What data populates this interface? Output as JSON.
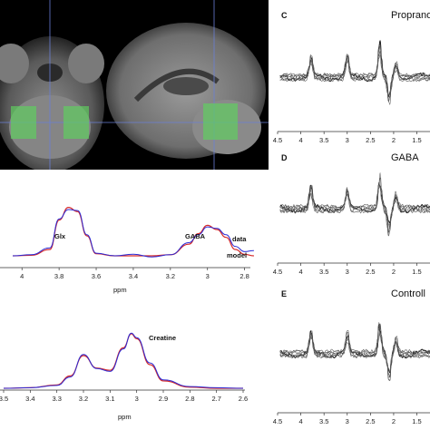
{
  "colors": {
    "data": "#2b2bd6",
    "model": "#d62b2b",
    "mask": "#5ed25e",
    "trace": "#222222"
  },
  "chart_data": [
    {
      "type": "line",
      "panel": "gaba-fit",
      "x": [
        4.05,
        3.95,
        3.85,
        3.8,
        3.75,
        3.7,
        3.65,
        3.6,
        3.5,
        3.4,
        3.3,
        3.2,
        3.1,
        3.05,
        3.0,
        2.95,
        2.9,
        2.85,
        2.8,
        2.75
      ],
      "series": [
        {
          "name": "data",
          "values": [
            0.0,
            0.02,
            0.15,
            0.7,
            0.88,
            0.86,
            0.4,
            0.05,
            0.0,
            0.03,
            -0.02,
            0.02,
            0.25,
            0.4,
            0.55,
            0.52,
            0.4,
            0.18,
            0.08,
            0.1
          ]
        },
        {
          "name": "model",
          "values": [
            0.0,
            0.01,
            0.12,
            0.68,
            0.92,
            0.84,
            0.38,
            0.04,
            0.0,
            0.0,
            0.0,
            0.02,
            0.22,
            0.42,
            0.58,
            0.5,
            0.35,
            0.12,
            0.03,
            0.0
          ]
        }
      ],
      "xlabel": "ppm",
      "xticks": [
        "4",
        "3.8",
        "3.6",
        "3.4",
        "3.2",
        "3",
        "2.8"
      ],
      "xlim": [
        4.05,
        2.72
      ],
      "annotations": [
        "Glx",
        "GABA"
      ]
    },
    {
      "type": "line",
      "panel": "creatine-fit",
      "x": [
        3.5,
        3.4,
        3.3,
        3.25,
        3.2,
        3.15,
        3.1,
        3.05,
        3.02,
        3.0,
        2.95,
        2.9,
        2.8,
        2.7,
        2.6
      ],
      "series": [
        {
          "name": "data",
          "values": [
            0.0,
            0.01,
            0.05,
            0.2,
            0.6,
            0.35,
            0.3,
            0.7,
            0.98,
            0.9,
            0.45,
            0.15,
            0.03,
            0.01,
            0.0
          ]
        },
        {
          "name": "model",
          "values": [
            0.0,
            0.01,
            0.06,
            0.22,
            0.58,
            0.36,
            0.32,
            0.72,
            0.97,
            0.88,
            0.42,
            0.13,
            0.02,
            0.0,
            0.0
          ]
        }
      ],
      "xlabel": "ppm",
      "xticks": [
        "3.5",
        "3.4",
        "3.3",
        "3.2",
        "3.1",
        "3",
        "2.9",
        "2.8",
        "2.7",
        "2.6"
      ],
      "xlim": [
        3.5,
        2.6
      ],
      "annotations": [
        "Creatine"
      ]
    },
    {
      "type": "line",
      "panel": "C",
      "title": "Proprano",
      "xticks": [
        "4.5",
        "4",
        "3.5",
        "3",
        "2.5",
        "2",
        "1.5"
      ],
      "xlim": [
        4.5,
        1.1
      ]
    },
    {
      "type": "line",
      "panel": "D",
      "title": "GABA",
      "xticks": [
        "4.5",
        "4",
        "3.5",
        "3",
        "2.5",
        "2",
        "1.5"
      ],
      "xlim": [
        4.5,
        1.1
      ]
    },
    {
      "type": "line",
      "panel": "E",
      "title": "Controll",
      "xticks": [
        "4.5",
        "4",
        "3.5",
        "3",
        "2.5",
        "2",
        "1.5"
      ],
      "xlim": [
        4.5,
        1.1
      ]
    }
  ],
  "panels": {
    "gaba": {
      "glx": "Glx",
      "gaba": "GABA",
      "legend_data": "data",
      "legend_model": "model",
      "xlabel": "ppm"
    },
    "creatine": {
      "creatine": "Creatine",
      "xlabel": "ppm"
    },
    "c": {
      "letter": "C",
      "title": "Proprano"
    },
    "d": {
      "letter": "D",
      "title": "GABA"
    },
    "e": {
      "letter": "E",
      "title": "Controll"
    }
  }
}
